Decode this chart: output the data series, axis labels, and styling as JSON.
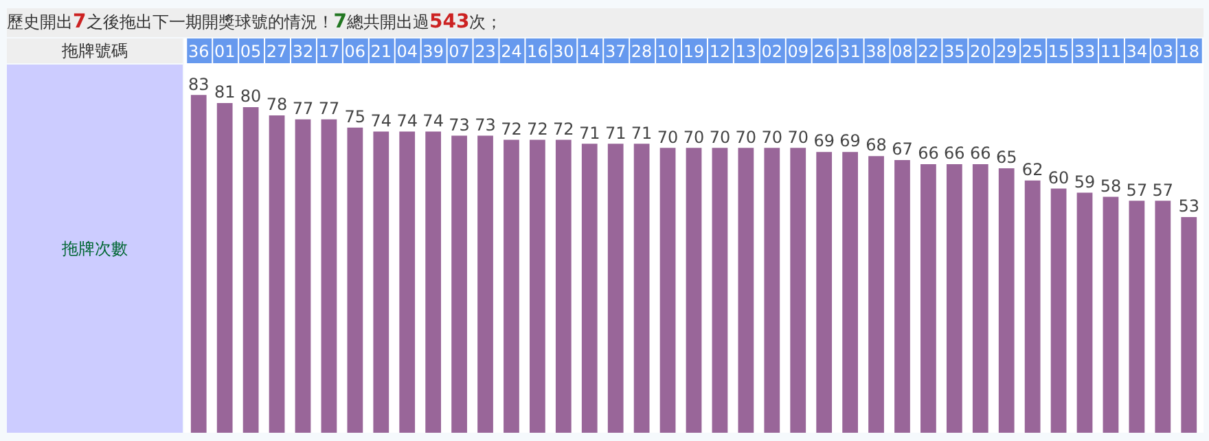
{
  "chart_data": {
    "type": "bar",
    "title": "歷史開出7之後拖出下一期開獎球號的情況！7總共開出過543次；",
    "xlabel": "拖牌號碼",
    "ylabel": "拖牌次數",
    "categories": [
      "36",
      "01",
      "05",
      "27",
      "32",
      "17",
      "06",
      "21",
      "04",
      "39",
      "07",
      "23",
      "24",
      "16",
      "30",
      "14",
      "37",
      "28",
      "10",
      "19",
      "12",
      "13",
      "02",
      "09",
      "26",
      "31",
      "38",
      "08",
      "22",
      "35",
      "20",
      "29",
      "25",
      "15",
      "33",
      "11",
      "34",
      "03",
      "18"
    ],
    "values": [
      83,
      81,
      80,
      78,
      77,
      77,
      75,
      74,
      74,
      74,
      73,
      73,
      72,
      72,
      72,
      71,
      71,
      71,
      70,
      70,
      70,
      70,
      70,
      70,
      69,
      69,
      68,
      67,
      66,
      66,
      66,
      65,
      62,
      60,
      59,
      58,
      57,
      57,
      53
    ],
    "color": "#996699",
    "data_labels": true,
    "grid": false,
    "legend": false
  }
}
